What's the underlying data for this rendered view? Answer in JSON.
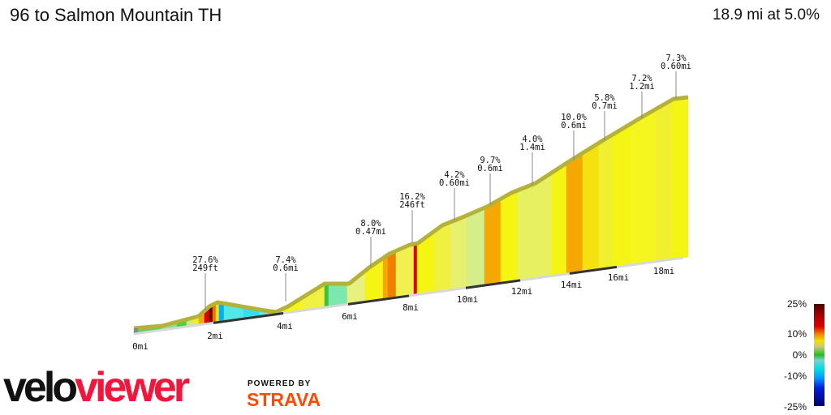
{
  "header": {
    "title": "96 to Salmon Mountain TH",
    "summary": "18.9 mi at 5.0%"
  },
  "climbs": [
    {
      "grade": "27.6%",
      "length": "249ft"
    },
    {
      "grade": "7.4%",
      "length": "0.6mi"
    },
    {
      "grade": "8.0%",
      "length": "0.47mi"
    },
    {
      "grade": "16.2%",
      "length": "246ft"
    },
    {
      "grade": "4.2%",
      "length": "0.60mi"
    },
    {
      "grade": "9.7%",
      "length": "0.6mi"
    },
    {
      "grade": "4.0%",
      "length": "1.4mi"
    },
    {
      "grade": "10.0%",
      "length": "0.6mi"
    },
    {
      "grade": "5.8%",
      "length": "0.7mi"
    },
    {
      "grade": "7.2%",
      "length": "1.2mi"
    },
    {
      "grade": "7.3%",
      "length": "0.60mi"
    }
  ],
  "mile_labels": [
    "0mi",
    "2mi",
    "4mi",
    "6mi",
    "8mi",
    "10mi",
    "12mi",
    "14mi",
    "16mi",
    "18mi"
  ],
  "legend": {
    "labels": [
      "25%",
      "10%",
      "0%",
      "-10%",
      "-25%"
    ]
  },
  "branding": {
    "logo_left": "velo",
    "logo_right": "viewer",
    "powered_by": "POWERED BY",
    "strava": "STRAVA"
  },
  "colors": {
    "veloviewer_red": "#f5143c",
    "strava_orange": "#fc4c02",
    "profile_top": "#b5b23a"
  }
}
